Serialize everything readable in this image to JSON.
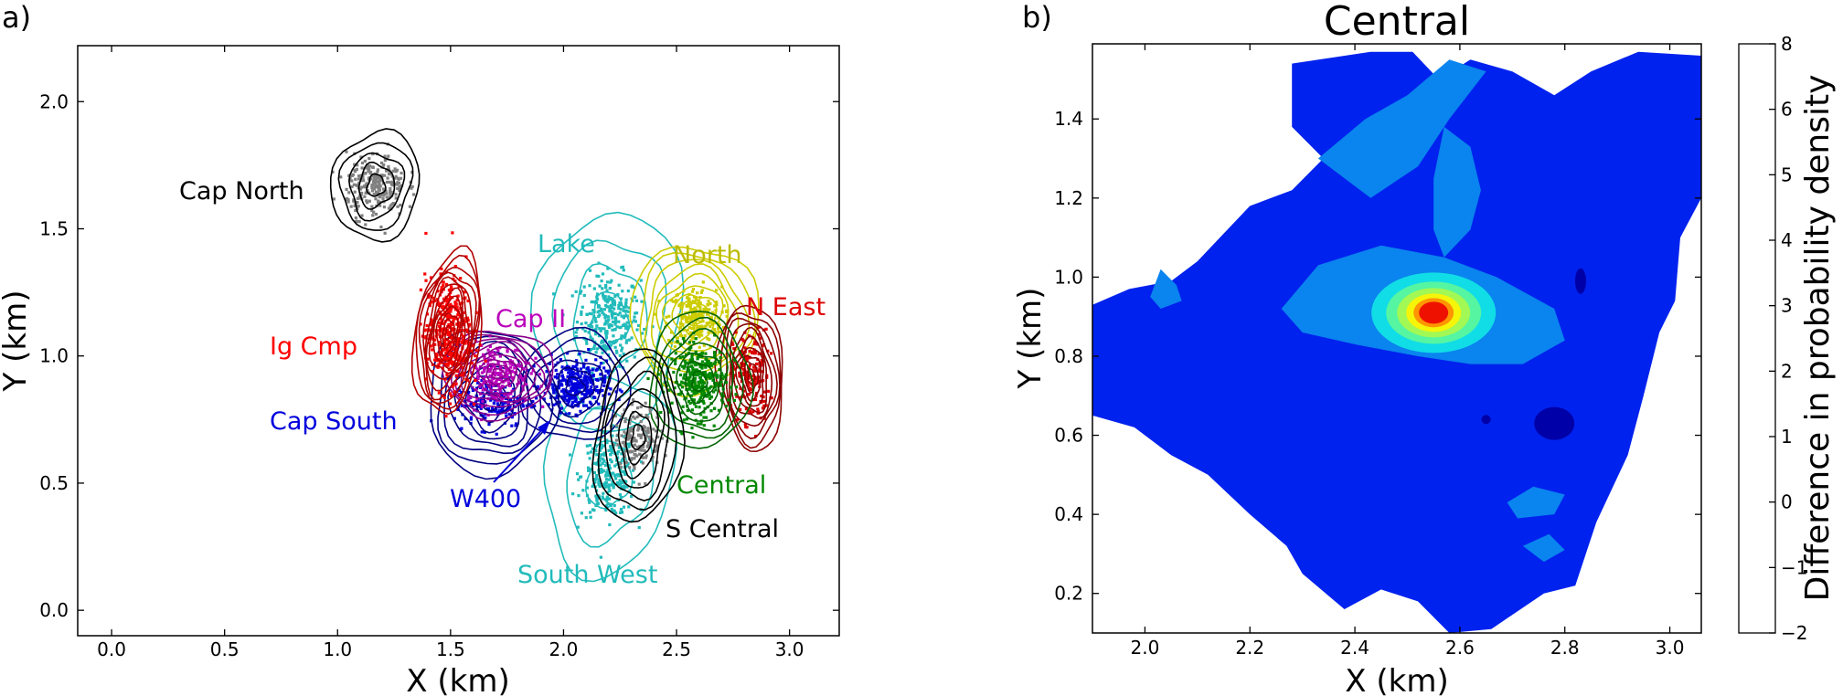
{
  "chart_data": [
    {
      "panel": "a)",
      "type": "scatter",
      "title": "",
      "xlabel": "X (km)",
      "ylabel": "Y (km)",
      "xlim": [
        -0.15,
        3.22
      ],
      "ylim": [
        -0.1,
        2.22
      ],
      "xticks": [
        "0.0",
        "0.5",
        "1.0",
        "1.5",
        "2.0",
        "2.5",
        "3.0"
      ],
      "yticks": [
        "0.0",
        "0.5",
        "1.0",
        "1.5",
        "2.0"
      ],
      "grid": false,
      "clusters": [
        {
          "name": "Cap North",
          "color": "#808080",
          "contour_color": "#000000",
          "center": [
            1.17,
            1.67
          ]
        },
        {
          "name": "Ig Cmp",
          "color": "#ff0000",
          "contour_color": "#b00000",
          "center": [
            1.49,
            1.09
          ]
        },
        {
          "name": "Cap II",
          "color": "#bb00bb",
          "contour_color": "#8b008b",
          "center": [
            1.71,
            0.93
          ]
        },
        {
          "name": "Cap South",
          "color": "#0000dd",
          "contour_color": "#000080",
          "center": [
            1.68,
            0.82
          ]
        },
        {
          "name": "Lake",
          "color": "#22bbbb",
          "contour_color": "#22bbbb",
          "center": [
            2.2,
            1.14
          ]
        },
        {
          "name": "North",
          "color": "#cccc00",
          "contour_color": "#cccc00",
          "center": [
            2.58,
            1.15
          ]
        },
        {
          "name": "N East",
          "color": "#dd0000",
          "contour_color": "#8b0000",
          "center": [
            2.83,
            0.92
          ]
        },
        {
          "name": "W400",
          "color": "#0000dd",
          "contour_color": "#000080",
          "center": [
            2.05,
            0.88
          ]
        },
        {
          "name": "Central",
          "color": "#008800",
          "contour_color": "#006400",
          "center": [
            2.6,
            0.9
          ]
        },
        {
          "name": "S Central",
          "color": "#808080",
          "contour_color": "#000000",
          "center": [
            2.33,
            0.68
          ]
        },
        {
          "name": "South West",
          "color": "#22bbbb",
          "contour_color": "#22bbbb",
          "center": [
            2.2,
            0.53
          ]
        }
      ]
    },
    {
      "panel": "b)",
      "type": "heatmap",
      "title": "Central",
      "xlabel": "X (km)",
      "ylabel": "Y (km)",
      "xlim": [
        1.9,
        3.06
      ],
      "ylim": [
        0.1,
        1.59
      ],
      "xticks": [
        "2.0",
        "2.2",
        "2.4",
        "2.6",
        "2.8",
        "3.0"
      ],
      "yticks": [
        "0.2",
        "0.4",
        "0.6",
        "0.8",
        "1.0",
        "1.2",
        "1.4"
      ],
      "colorbar": {
        "label": "Difference in probability density",
        "levels": [
          -2,
          -1,
          0,
          1,
          2,
          3,
          4,
          5,
          6,
          8
        ],
        "ticks": [
          "−2",
          "−1",
          "0",
          "1",
          "2",
          "3",
          "4",
          "5",
          "6",
          "8"
        ],
        "colors": [
          "#0000a8",
          "#0022ee",
          "#0a84ee",
          "#11dde6",
          "#55f5a2",
          "#a2f855",
          "#f5f50a",
          "#ff9500",
          "#ee1100"
        ]
      },
      "peak": {
        "x": 2.55,
        "y": 0.91,
        "value": 8
      }
    }
  ]
}
